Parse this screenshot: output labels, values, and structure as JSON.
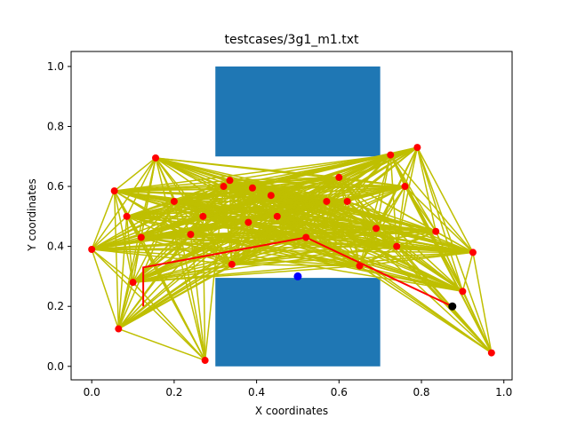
{
  "chart_data": {
    "type": "scatter",
    "title": "testcases/3g1_m1.txt",
    "xlabel": "X coordinates",
    "ylabel": "Y coordinates",
    "xlim": [
      -0.05,
      1.02
    ],
    "ylim": [
      -0.045,
      1.05
    ],
    "xticks": [
      "0.0",
      "0.2",
      "0.4",
      "0.6",
      "0.8",
      "1.0"
    ],
    "yticks": [
      "0.0",
      "0.2",
      "0.4",
      "0.6",
      "0.8",
      "1.0"
    ],
    "grid": false,
    "obstacles": [
      {
        "x0": 0.3,
        "y0": 0.7,
        "x1": 0.7,
        "y1": 1.0,
        "color": "#1f77b4"
      },
      {
        "x0": 0.3,
        "y0": 0.0,
        "x1": 0.7,
        "y1": 0.295,
        "color": "#1f77b4"
      }
    ],
    "samples": [
      [
        0.0,
        0.39
      ],
      [
        0.055,
        0.585
      ],
      [
        0.065,
        0.125
      ],
      [
        0.155,
        0.695
      ],
      [
        0.085,
        0.5
      ],
      [
        0.12,
        0.43
      ],
      [
        0.2,
        0.55
      ],
      [
        0.24,
        0.44
      ],
      [
        0.275,
        0.02
      ],
      [
        0.32,
        0.6
      ],
      [
        0.335,
        0.62
      ],
      [
        0.34,
        0.34
      ],
      [
        0.39,
        0.595
      ],
      [
        0.435,
        0.57
      ],
      [
        0.52,
        0.43
      ],
      [
        0.38,
        0.48
      ],
      [
        0.45,
        0.5
      ],
      [
        0.6,
        0.63
      ],
      [
        0.62,
        0.55
      ],
      [
        0.65,
        0.335
      ],
      [
        0.69,
        0.46
      ],
      [
        0.725,
        0.705
      ],
      [
        0.76,
        0.6
      ],
      [
        0.79,
        0.73
      ],
      [
        0.74,
        0.4
      ],
      [
        0.9,
        0.25
      ],
      [
        0.925,
        0.38
      ],
      [
        0.97,
        0.045
      ],
      [
        0.835,
        0.45
      ],
      [
        0.1,
        0.28
      ],
      [
        0.27,
        0.5
      ],
      [
        0.57,
        0.55
      ]
    ],
    "edge_color": "#bfbf00",
    "sample_color": "#ff0000",
    "path": [
      [
        0.125,
        0.2
      ],
      [
        0.125,
        0.33
      ],
      [
        0.52,
        0.43
      ],
      [
        0.875,
        0.2
      ]
    ],
    "path_color": "#ff0000",
    "start": [
      0.875,
      0.2
    ],
    "start_color": "#000000",
    "goal": [
      0.5,
      0.3
    ],
    "goal_color": "#0000ff"
  }
}
